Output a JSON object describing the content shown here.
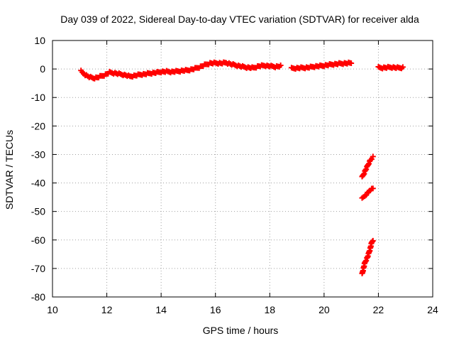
{
  "chart_data": {
    "type": "scatter",
    "title": "Day 039 of 2022, Sidereal Day-to-day VTEC variation (SDTVAR) for receiver alda",
    "xlabel": "GPS time / hours",
    "ylabel": "SDTVAR / TECUs",
    "xlim": [
      10,
      24
    ],
    "ylim": [
      -80,
      10
    ],
    "x_ticks": [
      10,
      12,
      14,
      16,
      18,
      20,
      22,
      24
    ],
    "y_ticks": [
      10,
      0,
      -10,
      -20,
      -30,
      -40,
      -50,
      -60,
      -70,
      -80
    ],
    "x_tick_labels": [
      "10",
      "12",
      "14",
      "16",
      "18",
      "20",
      "22",
      "24"
    ],
    "y_tick_labels": [
      "10",
      "0",
      "-10",
      "-20",
      "-30",
      "-40",
      "-50",
      "-60",
      "-70",
      "-80"
    ],
    "grid": true,
    "marker": "+",
    "series": [
      {
        "name": "main-track",
        "color": "#ff0000",
        "x": [
          11.05,
          11.2,
          11.35,
          11.5,
          11.65,
          11.8,
          11.95,
          12.1,
          12.3,
          12.5,
          12.7,
          12.85,
          13.0,
          13.2,
          13.4,
          13.6,
          13.8,
          14.0,
          14.2,
          14.4,
          14.6,
          14.8,
          15.0,
          15.2,
          15.4,
          15.6,
          15.8,
          16.0,
          16.2,
          16.4,
          16.6,
          16.8,
          17.0,
          17.2,
          17.4,
          17.6,
          17.8,
          18.0,
          18.2,
          18.4
        ],
        "y": [
          -0.8,
          -2.0,
          -2.8,
          -3.2,
          -3.0,
          -2.5,
          -2.0,
          -1.2,
          -1.5,
          -1.8,
          -2.2,
          -2.6,
          -2.4,
          -2.0,
          -1.8,
          -1.5,
          -1.3,
          -1.0,
          -0.9,
          -1.0,
          -0.8,
          -0.6,
          -0.4,
          0.0,
          0.6,
          1.4,
          2.0,
          2.1,
          2.0,
          2.2,
          1.6,
          1.2,
          0.8,
          0.5,
          0.4,
          1.0,
          1.2,
          1.0,
          0.8,
          1.0
        ]
      },
      {
        "name": "mid-track",
        "color": "#ff0000",
        "x": [
          18.8,
          19.0,
          19.2,
          19.4,
          19.6,
          19.8,
          20.0,
          20.2,
          20.4,
          20.6,
          20.8,
          21.0
        ],
        "y": [
          0.2,
          0.3,
          0.4,
          0.5,
          0.8,
          1.0,
          1.2,
          1.5,
          1.7,
          1.9,
          2.0,
          2.1
        ]
      },
      {
        "name": "late-track",
        "color": "#ff0000",
        "x": [
          22.0,
          22.15,
          22.3,
          22.45,
          22.6,
          22.75,
          22.9
        ],
        "y": [
          0.5,
          0.4,
          0.5,
          0.6,
          0.5,
          0.4,
          0.5
        ]
      },
      {
        "name": "drop-upper",
        "color": "#ff0000",
        "x": [
          21.4,
          21.5,
          21.6,
          21.7,
          21.8
        ],
        "y": [
          -38.0,
          -36.0,
          -34.0,
          -32.0,
          -31.0
        ]
      },
      {
        "name": "drop-middle",
        "color": "#ff0000",
        "x": [
          21.4,
          21.5,
          21.6,
          21.7,
          21.8
        ],
        "y": [
          -45.5,
          -44.5,
          -43.5,
          -42.5,
          -42.0
        ]
      },
      {
        "name": "drop-lower",
        "color": "#ff0000",
        "x": [
          21.4,
          21.45,
          21.5,
          21.55,
          21.6,
          21.65,
          21.7,
          21.75,
          21.8
        ],
        "y": [
          -72.0,
          -70.0,
          -68.0,
          -67.0,
          -66.0,
          -64.5,
          -63.0,
          -61.0,
          -60.0
        ]
      }
    ]
  }
}
